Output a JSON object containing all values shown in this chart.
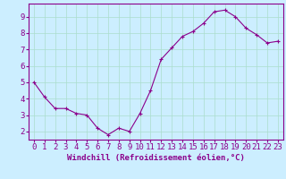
{
  "x": [
    0,
    1,
    2,
    3,
    4,
    5,
    6,
    7,
    8,
    9,
    10,
    11,
    12,
    13,
    14,
    15,
    16,
    17,
    18,
    19,
    20,
    21,
    22,
    23
  ],
  "y": [
    5.0,
    4.1,
    3.4,
    3.4,
    3.1,
    3.0,
    2.2,
    1.8,
    2.2,
    2.0,
    3.1,
    4.5,
    6.4,
    7.1,
    7.8,
    8.1,
    8.6,
    9.3,
    9.4,
    9.0,
    8.3,
    7.9,
    7.4,
    7.5
  ],
  "line_color": "#8B008B",
  "marker": "+",
  "marker_color": "#8B008B",
  "bg_color": "#cceeff",
  "grid_color": "#aaddcc",
  "xlabel": "Windchill (Refroidissement éolien,°C)",
  "xlabel_color": "#8B008B",
  "xlim": [
    -0.5,
    23.5
  ],
  "ylim": [
    1.5,
    9.8
  ],
  "yticks": [
    2,
    3,
    4,
    5,
    6,
    7,
    8,
    9
  ],
  "xticks": [
    0,
    1,
    2,
    3,
    4,
    5,
    6,
    7,
    8,
    9,
    10,
    11,
    12,
    13,
    14,
    15,
    16,
    17,
    18,
    19,
    20,
    21,
    22,
    23
  ],
  "tick_color": "#8B008B",
  "spine_color": "#8B008B",
  "axis_bg_color": "#cceeff",
  "font_size_xlabel": 6.5,
  "font_size_ticks": 6.5,
  "linewidth": 0.8,
  "markersize": 3.5
}
